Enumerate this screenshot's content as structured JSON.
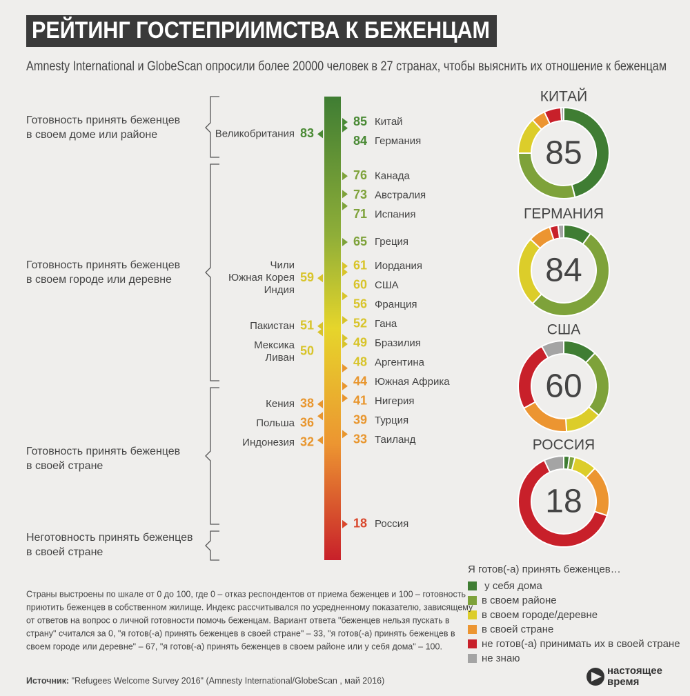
{
  "title": "РЕЙТИНГ ГОСТЕПРИИМСТВА К БЕЖЕНЦАМ",
  "subtitle": "Amnesty International и GlobeScan опросили более 20000 человек в 27 странах, чтобы выяснить их отношение к беженцам",
  "brackets": [
    [
      "Готовность принять беженцев",
      "в своем доме или районе"
    ],
    [
      "Готовность принять беженцев",
      "в своем городе или деревне"
    ],
    [
      "Готовность принять беженцев",
      "в своей стране"
    ],
    [
      "Неготовность принять беженцев",
      "в своей стране"
    ]
  ],
  "scale": {
    "items": [
      {
        "names": [
          "Китай"
        ],
        "value": 85,
        "side": "right"
      },
      {
        "names": [
          "Германия"
        ],
        "value": 84,
        "side": "right"
      },
      {
        "names": [
          "Великобритания"
        ],
        "value": 83,
        "side": "left"
      },
      {
        "names": [
          "Канада"
        ],
        "value": 76,
        "side": "right"
      },
      {
        "names": [
          "Австралия"
        ],
        "value": 73,
        "side": "right"
      },
      {
        "names": [
          "Испания"
        ],
        "value": 71,
        "side": "right"
      },
      {
        "names": [
          "Греция"
        ],
        "value": 65,
        "side": "right"
      },
      {
        "names": [
          "Иордания"
        ],
        "value": 61,
        "side": "right"
      },
      {
        "names": [
          "США"
        ],
        "value": 60,
        "side": "right"
      },
      {
        "names": [
          "Чили",
          "Южная Корея",
          "Индия"
        ],
        "value": 59,
        "side": "left"
      },
      {
        "names": [
          "Франция"
        ],
        "value": 56,
        "side": "right"
      },
      {
        "names": [
          "Гана"
        ],
        "value": 52,
        "side": "right"
      },
      {
        "names": [
          "Пакистан"
        ],
        "value": 51,
        "side": "left"
      },
      {
        "names": [
          "Мексика",
          "Ливан"
        ],
        "value": 50,
        "side": "left"
      },
      {
        "names": [
          "Бразилия"
        ],
        "value": 49,
        "side": "right"
      },
      {
        "names": [
          "Аргентина"
        ],
        "value": 48,
        "side": "right"
      },
      {
        "names": [
          "Южная Африка"
        ],
        "value": 44,
        "side": "right"
      },
      {
        "names": [
          "Нигерия"
        ],
        "value": 41,
        "side": "right"
      },
      {
        "names": [
          "Турция"
        ],
        "value": 39,
        "side": "right"
      },
      {
        "names": [
          "Кения"
        ],
        "value": 38,
        "side": "left"
      },
      {
        "names": [
          "Польша"
        ],
        "value": 36,
        "side": "left"
      },
      {
        "names": [
          "Таиланд"
        ],
        "value": 33,
        "side": "right"
      },
      {
        "names": [
          "Индонезия"
        ],
        "value": 32,
        "side": "left"
      },
      {
        "names": [
          "Россия"
        ],
        "value": 18,
        "side": "right"
      }
    ]
  },
  "chart_data": [
    {
      "type": "pie",
      "title": "КИТАЙ",
      "index": 85,
      "values": [
        46,
        29,
        13,
        5,
        6,
        1
      ]
    },
    {
      "type": "pie",
      "title": "ГЕРМАНИЯ",
      "index": 84,
      "values": [
        10,
        52,
        25,
        8,
        3,
        2
      ]
    },
    {
      "type": "pie",
      "title": "США",
      "index": 60,
      "values": [
        12,
        24,
        13,
        18,
        25,
        8
      ]
    },
    {
      "type": "pie",
      "title": "РОССИЯ",
      "index": 18,
      "values": [
        2,
        2,
        8,
        18,
        63,
        7
      ]
    }
  ],
  "legend": {
    "title": "Я готов(-а) принять беженцев…",
    "items": [
      {
        "name": " у себя дома",
        "color": "#3f7d33"
      },
      {
        "name": "в своем районе",
        "color": "#7ea23a"
      },
      {
        "name": "в своем городе/деревне",
        "color": "#dccd2a"
      },
      {
        "name": "в своей стране",
        "color": "#ec9531"
      },
      {
        "name": "не готов(-а) принимать их в своей стране",
        "color": "#c8202a"
      },
      {
        "name": "не знаю",
        "color": "#a4a4a4"
      }
    ]
  },
  "footnote": [
    "Страны выстроены по шкале от 0 до 100, где 0 – отказ респондентов от приема беженцев и 100 – готовность",
    "приютить беженцев в собственном жилище. Индекс рассчитывался по усредненному показателю, зависящему",
    "от ответов на вопрос о личной готовности помочь беженцам.  Вариант ответа \"беженцев нельзя пускать в",
    "страну\" считался за 0, \"я готов(-а) принять беженцев в своей стране\" – 33, \"я готов(-а) принять беженцев в",
    "своем городе или деревне\" – 67, \"я готов(-а) принять беженцев в своем районе или у себя дома\" – 100."
  ],
  "source": {
    "label": "Источник:",
    "text": " \"Refugees Welcome Survey 2016\" (Amnesty International/GlobeScan , май 2016)"
  },
  "logo": [
    "настоящее",
    "время"
  ]
}
